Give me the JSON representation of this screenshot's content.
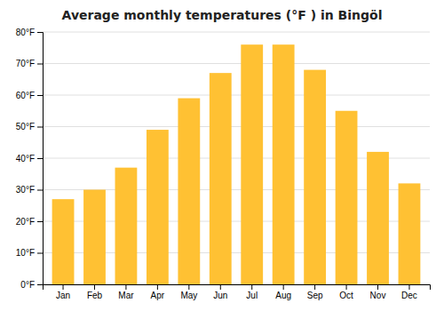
{
  "chart_data": {
    "type": "bar",
    "title": "Average monthly temperatures (°F ) in Bingöl",
    "categories": [
      "Jan",
      "Feb",
      "Mar",
      "Apr",
      "May",
      "Jun",
      "Jul",
      "Aug",
      "Sep",
      "Oct",
      "Nov",
      "Dec"
    ],
    "values": [
      27,
      30,
      37,
      49,
      59,
      67,
      76,
      76,
      68,
      55,
      42,
      32
    ],
    "color": "#FFC133",
    "ylim": [
      0,
      80
    ],
    "yticks": [
      {
        "value": 0,
        "label": "0°F"
      },
      {
        "value": 10,
        "label": "10°F"
      },
      {
        "value": 20,
        "label": "20°F"
      },
      {
        "value": 30,
        "label": "30°F"
      },
      {
        "value": 40,
        "label": "40°F"
      },
      {
        "value": 50,
        "label": "50°F"
      },
      {
        "value": 60,
        "label": "60°F"
      },
      {
        "value": 70,
        "label": "70°F"
      },
      {
        "value": 80,
        "label": "80°F"
      }
    ],
    "grid": true
  }
}
